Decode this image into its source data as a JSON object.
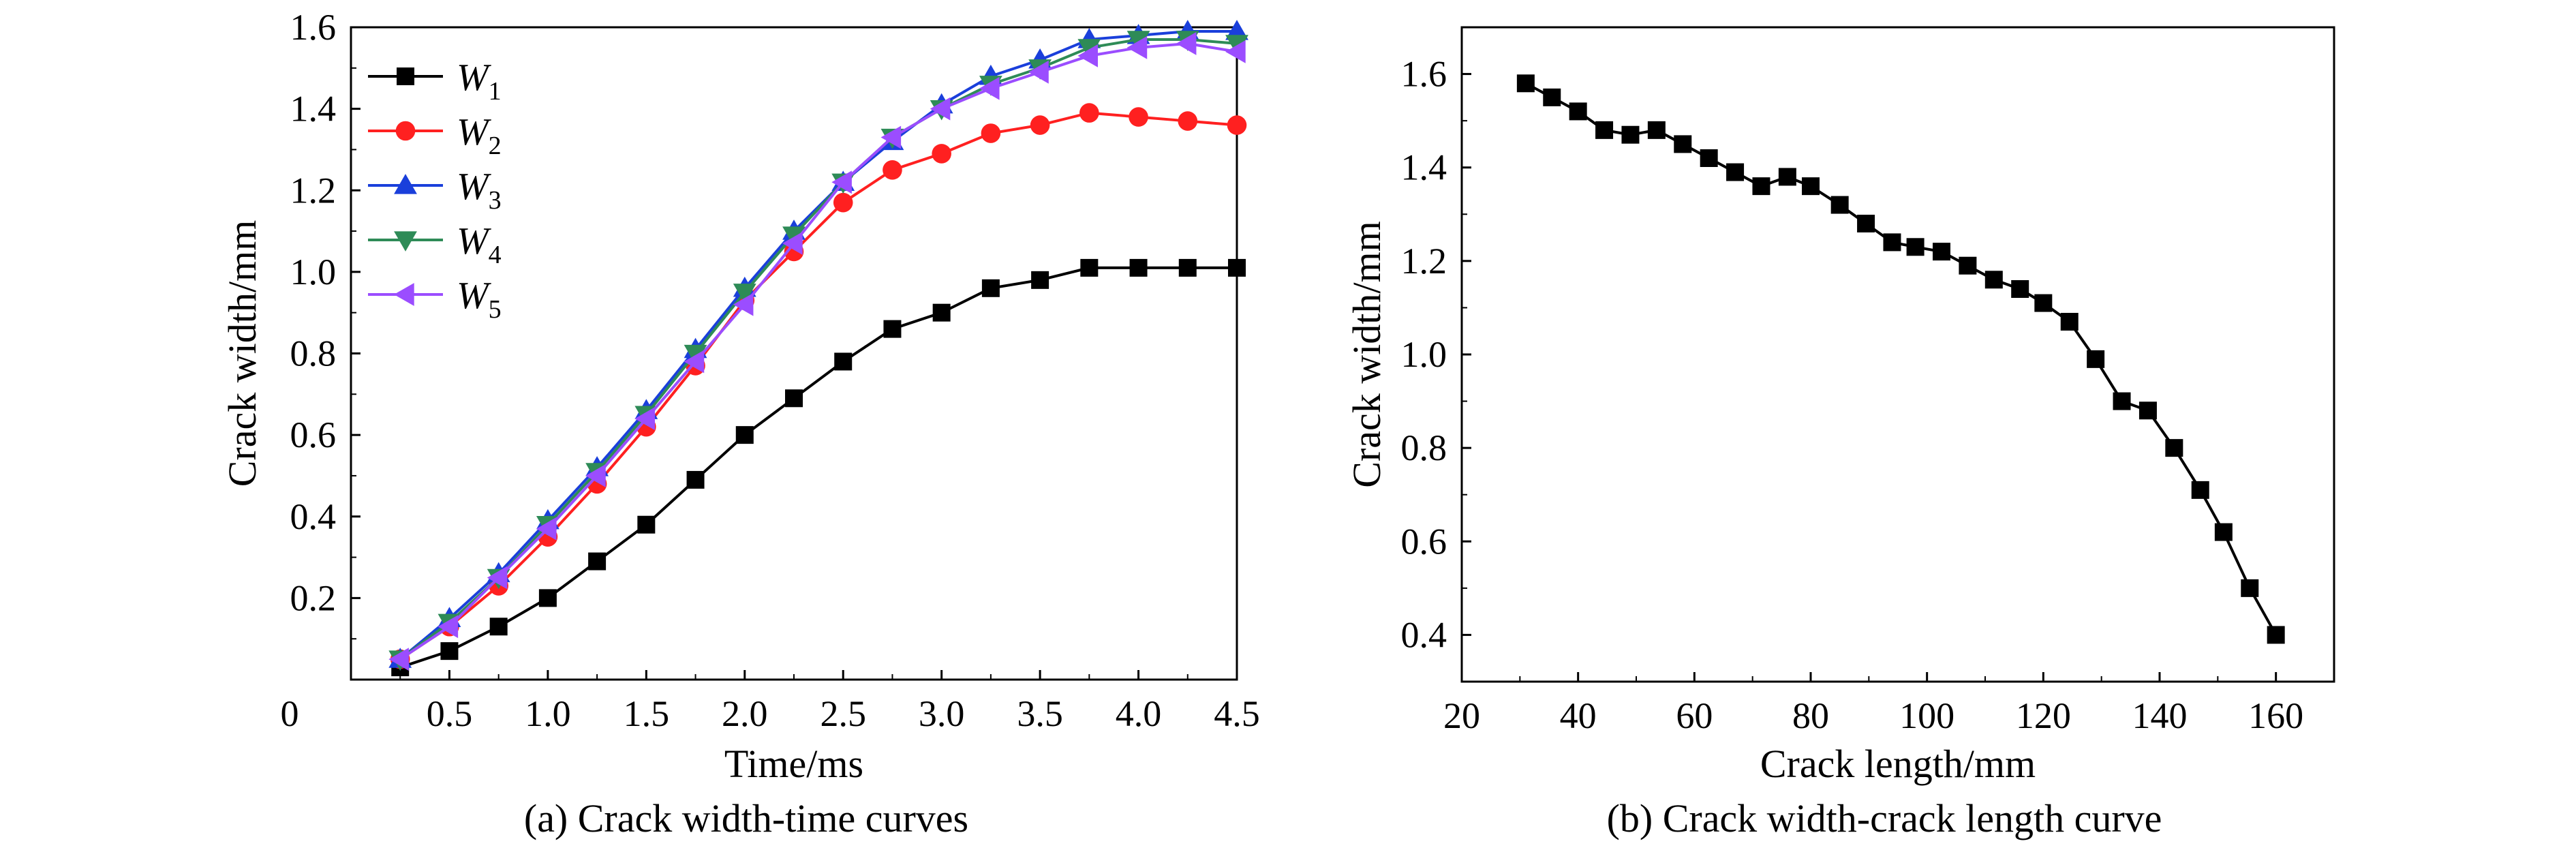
{
  "charts": [
    {
      "id": "a",
      "caption": "(a) Crack width-time curves",
      "xlabel": "Time/ms",
      "ylabel": "Crack width/mm",
      "x_ticks": [
        "0.5",
        "1.0",
        "1.5",
        "2.0",
        "2.5",
        "3.0",
        "3.5",
        "4.0",
        "4.5"
      ],
      "y_ticks": [
        "0.2",
        "0.4",
        "0.6",
        "0.8",
        "1.0",
        "1.2",
        "1.4",
        "1.6"
      ],
      "corner_label": "0",
      "legend": [
        {
          "base": "W",
          "sub": "1"
        },
        {
          "base": "W",
          "sub": "2"
        },
        {
          "base": "W",
          "sub": "3"
        },
        {
          "base": "W",
          "sub": "4"
        },
        {
          "base": "W",
          "sub": "5"
        }
      ]
    },
    {
      "id": "b",
      "caption": "(b) Crack width-crack length curve",
      "xlabel": "Crack length/mm",
      "ylabel": "Crack width/mm",
      "x_ticks": [
        "20",
        "40",
        "60",
        "80",
        "100",
        "120",
        "140",
        "160"
      ],
      "y_ticks": [
        "0.4",
        "0.6",
        "0.8",
        "1.0",
        "1.2",
        "1.4",
        "1.6"
      ]
    }
  ],
  "chart_data": [
    {
      "type": "line",
      "title": "(a) Crack width-time curves",
      "xlabel": "Time/ms",
      "ylabel": "Crack width/mm",
      "xlim": [
        0.0,
        4.5
      ],
      "ylim": [
        0.0,
        1.6
      ],
      "grid": false,
      "legend_position": "top-left",
      "x": [
        0.25,
        0.5,
        0.75,
        1.0,
        1.25,
        1.5,
        1.75,
        2.0,
        2.25,
        2.5,
        2.75,
        3.0,
        3.25,
        3.5,
        3.75,
        4.0,
        4.25,
        4.5
      ],
      "series": [
        {
          "name": "W1",
          "color": "#000000",
          "marker": "square",
          "values": [
            0.03,
            0.07,
            0.13,
            0.2,
            0.29,
            0.38,
            0.49,
            0.6,
            0.69,
            0.78,
            0.86,
            0.9,
            0.96,
            0.98,
            1.01,
            1.01,
            1.01,
            1.01
          ]
        },
        {
          "name": "W2",
          "color": "#ff2020",
          "marker": "circle",
          "values": [
            0.05,
            0.13,
            0.23,
            0.35,
            0.48,
            0.62,
            0.77,
            0.93,
            1.05,
            1.17,
            1.25,
            1.29,
            1.34,
            1.36,
            1.39,
            1.38,
            1.37,
            1.36
          ]
        },
        {
          "name": "W3",
          "color": "#1a3fdb",
          "marker": "triangle-up",
          "values": [
            0.05,
            0.15,
            0.26,
            0.39,
            0.52,
            0.66,
            0.81,
            0.96,
            1.1,
            1.22,
            1.32,
            1.41,
            1.48,
            1.52,
            1.57,
            1.58,
            1.59,
            1.59
          ]
        },
        {
          "name": "W4",
          "color": "#2e8b57",
          "marker": "triangle-down",
          "values": [
            0.05,
            0.14,
            0.25,
            0.38,
            0.51,
            0.65,
            0.8,
            0.95,
            1.09,
            1.22,
            1.33,
            1.4,
            1.46,
            1.5,
            1.55,
            1.57,
            1.57,
            1.56
          ]
        },
        {
          "name": "W5",
          "color": "#9b4dff",
          "marker": "triangle-left",
          "values": [
            0.05,
            0.13,
            0.25,
            0.37,
            0.5,
            0.64,
            0.78,
            0.92,
            1.07,
            1.22,
            1.33,
            1.4,
            1.45,
            1.49,
            1.53,
            1.55,
            1.56,
            1.54
          ]
        }
      ]
    },
    {
      "type": "line",
      "title": "(b) Crack width-crack length curve",
      "xlabel": "Crack length/mm",
      "ylabel": "Crack width/mm",
      "xlim": [
        20,
        170
      ],
      "ylim": [
        0.3,
        1.7
      ],
      "grid": false,
      "series": [
        {
          "name": "",
          "color": "#000000",
          "marker": "square",
          "x": [
            31,
            35.5,
            40,
            44.5,
            49,
            53.5,
            58,
            62.5,
            67,
            71.5,
            76,
            80,
            85,
            89.5,
            94,
            98,
            102.5,
            107,
            111.5,
            116,
            120,
            124.5,
            129,
            133.5,
            138,
            142.5,
            147,
            151,
            155.5,
            160
          ],
          "y": [
            1.58,
            1.55,
            1.52,
            1.48,
            1.47,
            1.48,
            1.45,
            1.42,
            1.39,
            1.36,
            1.38,
            1.36,
            1.32,
            1.28,
            1.24,
            1.23,
            1.22,
            1.19,
            1.16,
            1.14,
            1.11,
            1.07,
            0.99,
            0.9,
            0.88,
            0.8,
            0.71,
            0.62,
            0.5,
            0.4
          ]
        }
      ]
    }
  ]
}
